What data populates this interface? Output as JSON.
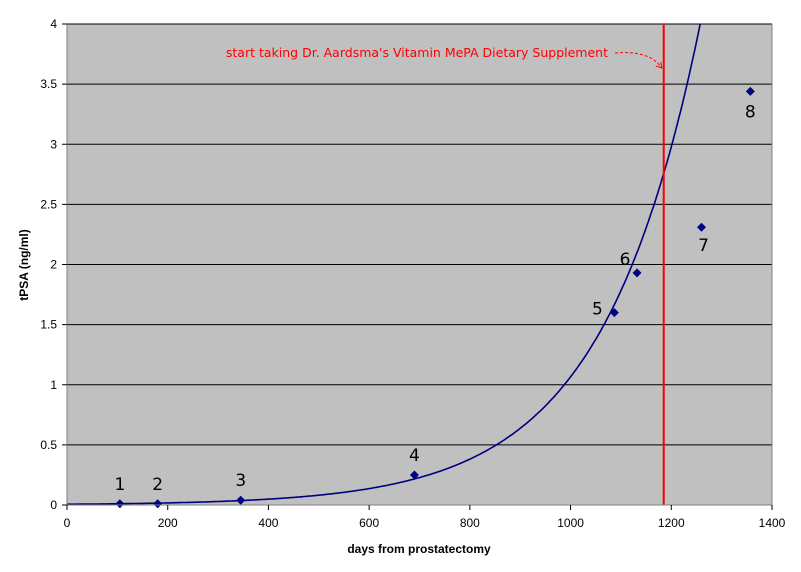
{
  "chart_data": {
    "type": "scatter",
    "title": "",
    "xlabel": "days from prostatectomy",
    "ylabel": "tPSA (ng/ml)",
    "xlim": [
      0,
      1400
    ],
    "ylim": [
      0,
      4
    ],
    "x_ticks": [
      0,
      200,
      400,
      600,
      800,
      1000,
      1200,
      1400
    ],
    "y_ticks": [
      0,
      0.5,
      1,
      1.5,
      2,
      2.5,
      3,
      3.5,
      4
    ],
    "x_tick_labels": [
      "0",
      "200",
      "400",
      "600",
      "800",
      "1000",
      "1200",
      "1400"
    ],
    "y_tick_labels": [
      "0",
      "0.5",
      "1",
      "1.5",
      "2",
      "2.5",
      "3",
      "3.5",
      "4"
    ],
    "grid": true,
    "legend": "none",
    "plot_background": "#c0c0c0",
    "series": [
      {
        "color": "#000080",
        "marker": "diamond",
        "points": [
          {
            "label": "1",
            "x": 105,
            "y": 0.01
          },
          {
            "label": "2",
            "x": 180,
            "y": 0.01
          },
          {
            "label": "3",
            "x": 345,
            "y": 0.04
          },
          {
            "label": "4",
            "x": 690,
            "y": 0.25
          },
          {
            "label": "5",
            "x": 1087,
            "y": 1.6
          },
          {
            "label": "6",
            "x": 1132,
            "y": 1.93
          },
          {
            "label": "7",
            "x": 1260,
            "y": 2.31
          },
          {
            "label": "8",
            "x": 1357,
            "y": 3.44
          }
        ]
      }
    ],
    "trendline": {
      "type": "exponential",
      "color": "#000080",
      "a": 0.00625,
      "b": 0.005139
    },
    "vertical_line": {
      "x": 1185,
      "color": "#ff0000"
    },
    "annotation": {
      "text": "start taking Dr. Aardsma's Vitamin MePA Dietary Supplement",
      "color": "#ff0000",
      "points_to_x": 1185
    }
  }
}
